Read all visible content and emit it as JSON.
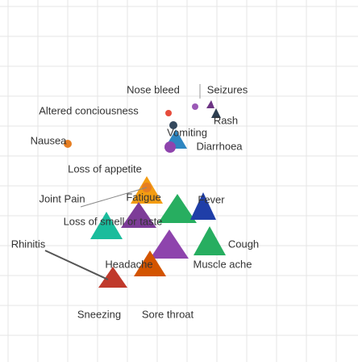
{
  "nodes": [
    {
      "label": "Nose bleed"
    },
    {
      "label": "Seizures"
    },
    {
      "label": "Altered conciousness"
    },
    {
      "label": "Vomiting"
    },
    {
      "label": "Rash"
    },
    {
      "label": "Nausea"
    },
    {
      "label": "Diarrhoea"
    },
    {
      "label": "Loss of appetite"
    },
    {
      "label": "Joint Pain"
    },
    {
      "label": "Fatigue"
    },
    {
      "label": "Fever"
    },
    {
      "label": "Loss of smell or taste"
    },
    {
      "label": "Rhinitis"
    },
    {
      "label": "Cough"
    },
    {
      "label": "Headache"
    },
    {
      "label": "Muscle ache"
    },
    {
      "label": "Sneezing"
    },
    {
      "label": "Sore throat"
    }
  ]
}
